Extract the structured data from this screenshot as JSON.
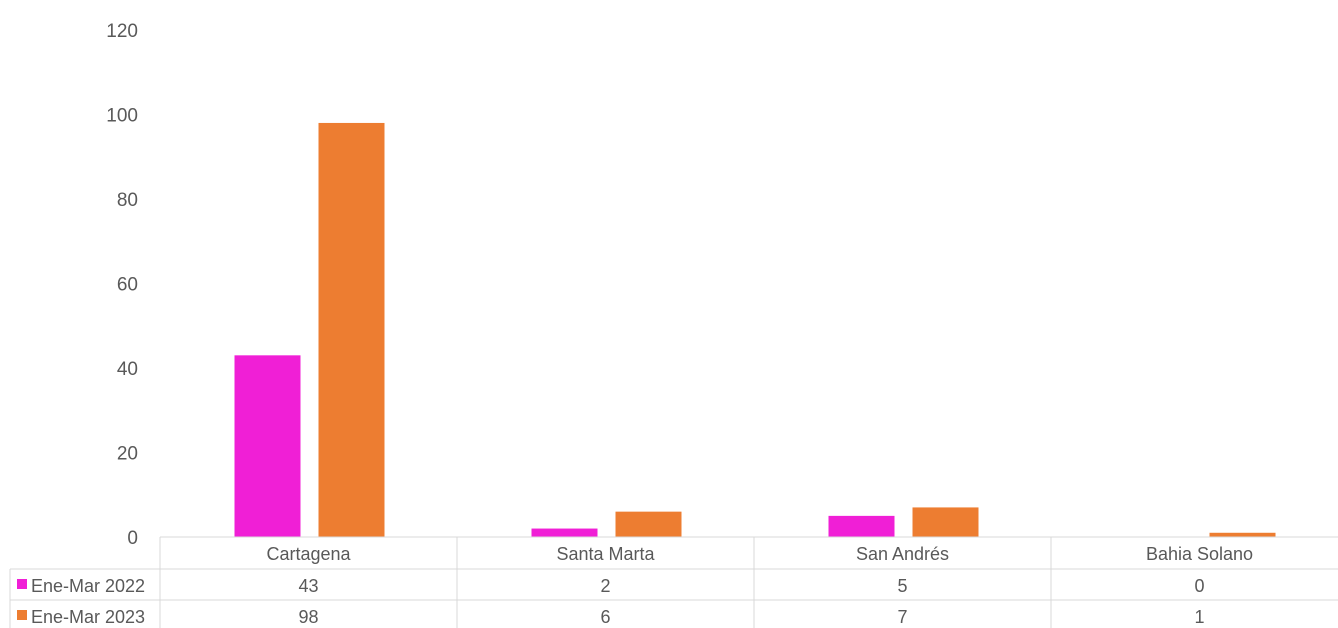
{
  "chart_data": {
    "type": "bar",
    "title": "",
    "xlabel": "",
    "ylabel": "",
    "categories": [
      "Cartagena",
      "Santa Marta",
      "San Andrés",
      "Bahia Solano"
    ],
    "series": [
      {
        "name": "Ene-Mar 2022",
        "values": [
          43,
          2,
          5,
          0
        ],
        "color": "#f01fd6"
      },
      {
        "name": "Ene-Mar 2023",
        "values": [
          98,
          6,
          7,
          1
        ],
        "color": "#ed7d31"
      }
    ],
    "yticks": [
      0,
      20,
      40,
      60,
      80,
      100,
      120
    ],
    "ylim": [
      0,
      120
    ],
    "grid": false,
    "legend": "data-table-left"
  }
}
